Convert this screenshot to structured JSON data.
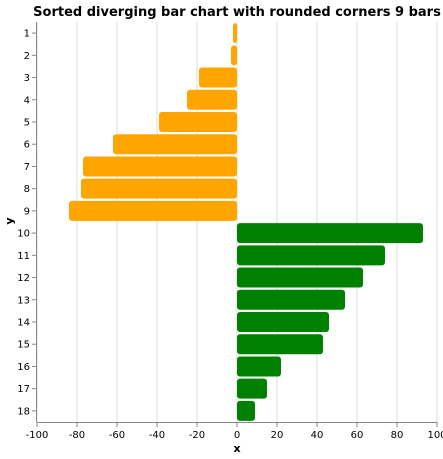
{
  "chart_data": {
    "type": "bar",
    "orientation": "horizontal",
    "title": "Sorted diverging bar chart with rounded corners 9 bars",
    "xlabel": "x",
    "ylabel": "y",
    "xlim": [
      -100,
      100
    ],
    "x_ticks": [
      -100,
      -80,
      -60,
      -40,
      -20,
      0,
      20,
      40,
      60,
      80,
      100
    ],
    "grid": true,
    "legend": "none",
    "categories": [
      "1",
      "2",
      "3",
      "4",
      "5",
      "6",
      "7",
      "8",
      "9",
      "10",
      "11",
      "12",
      "13",
      "14",
      "15",
      "16",
      "17",
      "18"
    ],
    "values": [
      -2,
      -3,
      -19,
      -25,
      -39,
      -62,
      -77,
      -78,
      -84,
      93,
      74,
      63,
      54,
      46,
      43,
      22,
      15,
      9
    ],
    "colors": {
      "negative": "#ffa500",
      "positive": "#008000"
    }
  }
}
